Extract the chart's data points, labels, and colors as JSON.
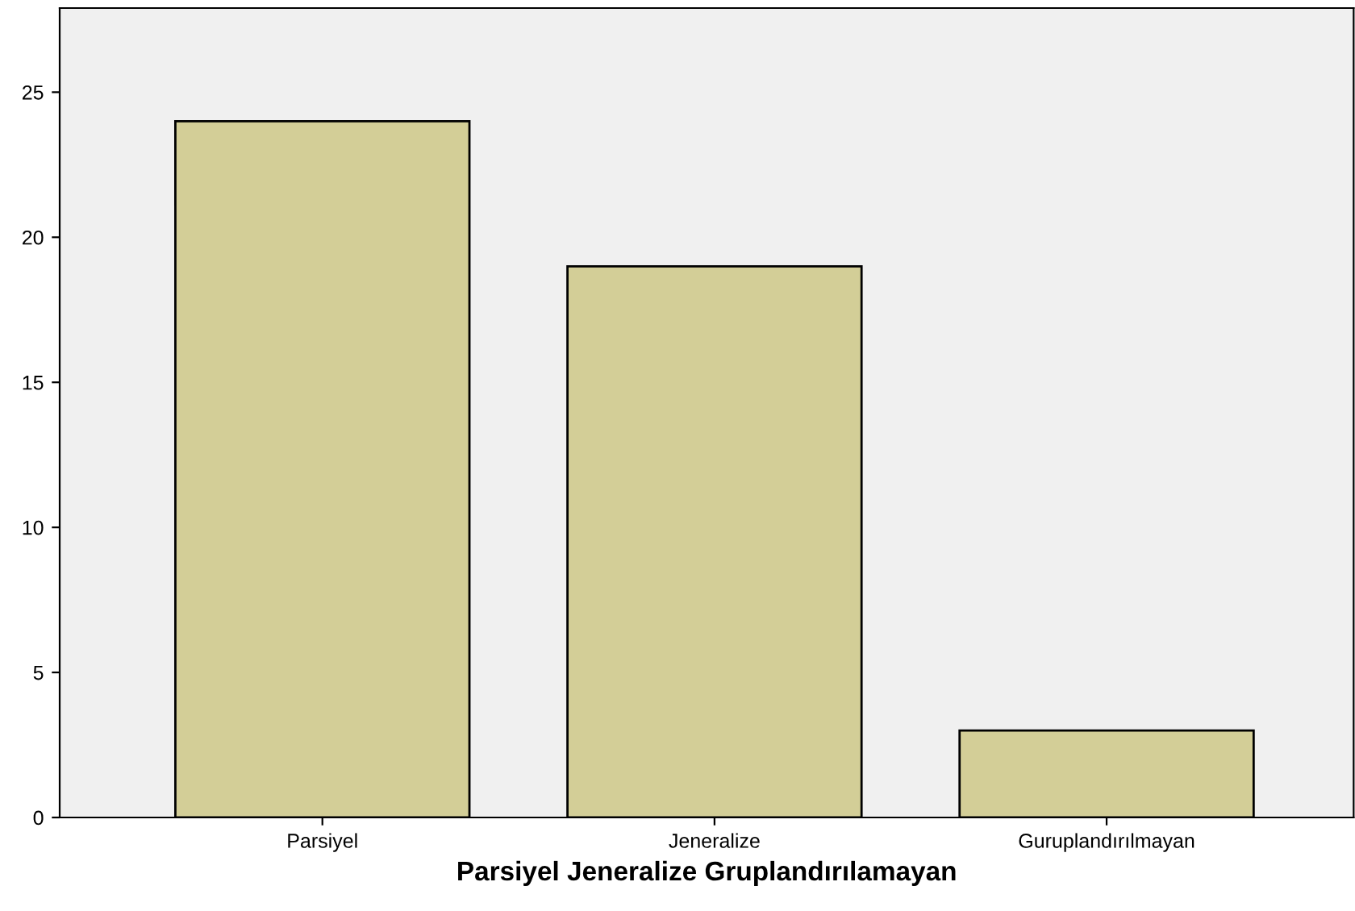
{
  "chart_data": {
    "type": "bar",
    "xlabel": "Parsiyel Jeneralize Gruplandırılamayan",
    "categories": [
      "Parsiyel",
      "Jeneralize",
      "Guruplandırılmayan"
    ],
    "values": [
      24,
      19,
      3
    ],
    "color": "#d3ce97",
    "ylim": [
      0,
      27.9
    ],
    "yticks": [
      0,
      5,
      10,
      15,
      20,
      25
    ],
    "grid": false
  }
}
